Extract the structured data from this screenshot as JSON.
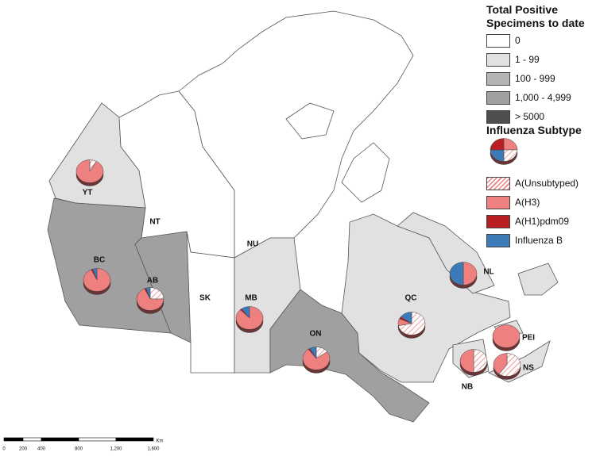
{
  "legend": {
    "title": "Total Positive Specimens to date",
    "classes": [
      {
        "label": "0",
        "color": "#ffffff"
      },
      {
        "label": "1 - 99",
        "color": "#e1e1e1"
      },
      {
        "label": "100 - 999",
        "color": "#b4b4b4"
      },
      {
        "label": "1,000 - 4,999",
        "color": "#a0a0a0"
      },
      {
        "label": "> 5000",
        "color": "#4e4e4e"
      }
    ],
    "subtype_title": "Influenza Subtype",
    "subtypes": [
      {
        "label": "A(Unsubtyped)",
        "color": "#e8827f",
        "hatched": true
      },
      {
        "label": "A(H3)",
        "color": "#ef8080"
      },
      {
        "label": "A(H1)pdm09",
        "color": "#b81e22"
      },
      {
        "label": "Influenza B",
        "color": "#3d7ab8"
      }
    ]
  },
  "regions": [
    {
      "label": "YT",
      "level": 1,
      "pie": [
        8,
        92,
        0,
        0
      ]
    },
    {
      "label": "NT",
      "level": 0
    },
    {
      "label": "NU",
      "level": 0
    },
    {
      "label": "BC",
      "level": 3,
      "pie": [
        0,
        93,
        2,
        5
      ]
    },
    {
      "label": "AB",
      "level": 3,
      "pie": [
        25,
        68,
        2,
        5
      ]
    },
    {
      "label": "SK",
      "level": 0
    },
    {
      "label": "MB",
      "level": 1,
      "pie": [
        0,
        88,
        2,
        10
      ]
    },
    {
      "label": "ON",
      "level": 3,
      "pie": [
        15,
        75,
        2,
        8
      ]
    },
    {
      "label": "QC",
      "level": 1,
      "pie": [
        72,
        10,
        3,
        15
      ]
    },
    {
      "label": "NL",
      "level": 1,
      "pie": [
        0,
        50,
        0,
        50
      ]
    },
    {
      "label": "PEI",
      "level": 1,
      "pie": [
        0,
        100,
        0,
        0
      ]
    },
    {
      "label": "NB",
      "level": 1,
      "pie": [
        50,
        50,
        0,
        0
      ]
    },
    {
      "label": "NS",
      "level": 1,
      "pie": [
        60,
        40,
        0,
        0
      ]
    }
  ],
  "scale_bar": {
    "labels": [
      "0",
      "200",
      "400",
      "800",
      "1,200",
      "1,600"
    ],
    "unit": "Km"
  }
}
